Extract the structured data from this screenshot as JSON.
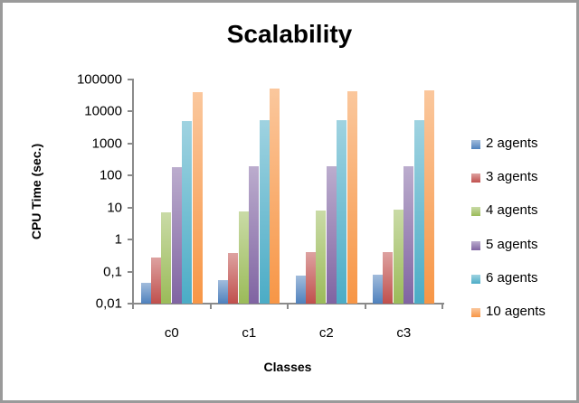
{
  "chart_data": {
    "type": "bar",
    "title": "Scalability",
    "xlabel": "Classes",
    "ylabel": "CPU Time (sec.)",
    "yscale": "log",
    "ylim": [
      0.01,
      100000
    ],
    "yticks": [
      "100000",
      "10000",
      "1000",
      "100",
      "10",
      "1",
      "0,1",
      "0,01"
    ],
    "categories": [
      "c0",
      "c1",
      "c2",
      "c3"
    ],
    "legend_position": "right",
    "grid": false,
    "series": [
      {
        "name": "2 agents",
        "color": "#4F81BD",
        "values": [
          0.045,
          0.054,
          0.074,
          0.08
        ]
      },
      {
        "name": "3 agents",
        "color": "#C0504D",
        "values": [
          0.27,
          0.38,
          0.4,
          0.4
        ]
      },
      {
        "name": "4 agents",
        "color": "#9BBB59",
        "values": [
          7,
          7.5,
          8,
          8.5
        ]
      },
      {
        "name": "5 agents",
        "color": "#8064A2",
        "values": [
          178,
          190,
          190,
          190
        ]
      },
      {
        "name": "6 agents",
        "color": "#4BACC6",
        "values": [
          4900,
          5200,
          5200,
          5200
        ]
      },
      {
        "name": "10 agents",
        "color": "#F79646",
        "values": [
          39000,
          50000,
          42000,
          44000
        ]
      }
    ]
  }
}
